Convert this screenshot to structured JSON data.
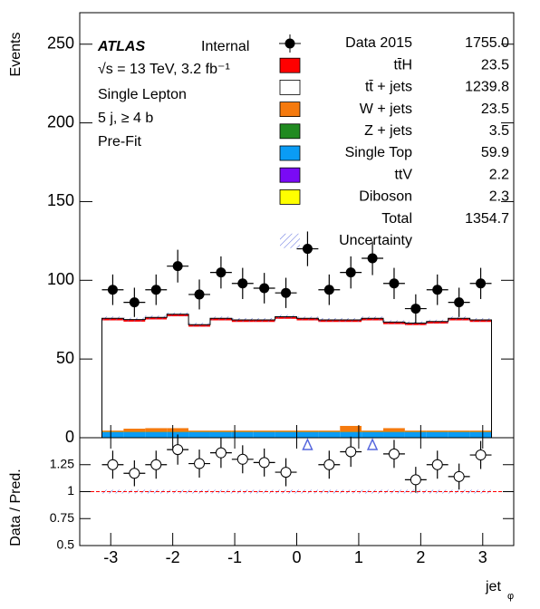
{
  "chart_data": {
    "type": "stacked_histogram",
    "y_label": "Events",
    "ratio_label": "Data / Pred.",
    "x_label": "jet",
    "x_label_sub": "φ",
    "annotations": [
      "ATLAS",
      "Internal",
      "√s = 13 TeV, 3.2 fb⁻¹",
      "Single Lepton",
      "5 j, ≥ 4 b",
      "Pre-Fit"
    ],
    "bins": [
      -3.142,
      -2.793,
      -2.443,
      -2.094,
      -1.745,
      -1.396,
      -1.047,
      -0.698,
      -0.349,
      0,
      0.349,
      0.698,
      1.047,
      1.396,
      1.745,
      2.094,
      2.443,
      2.793,
      3.142
    ],
    "xlim": [
      -3.5,
      3.5
    ],
    "xticks": [
      -3,
      -2,
      -1,
      0,
      1,
      2,
      3
    ],
    "ylim": [
      0,
      270
    ],
    "yticks": [
      0,
      50,
      100,
      150,
      200,
      250
    ],
    "ratio_ylim": [
      0.5,
      1.5
    ],
    "ratio_yticks": [
      {
        "value": 0.5,
        "label": "0.5"
      },
      {
        "value": 0.75,
        "label": "0.75"
      },
      1,
      {
        "value": 1.25,
        "label": "1.25"
      }
    ],
    "data": {
      "name": "Data 2015",
      "yield": "1755.0",
      "color": "#000000",
      "values": [
        94,
        86,
        94,
        109,
        91,
        105,
        98,
        95,
        92,
        120,
        94,
        105,
        114,
        98,
        82,
        94,
        86,
        98
      ],
      "errors": [
        9.7,
        9.3,
        9.7,
        10.4,
        9.5,
        10.2,
        9.9,
        9.7,
        9.6,
        11,
        9.7,
        10.2,
        10.7,
        9.9,
        9.1,
        9.7,
        9.3,
        9.9
      ]
    },
    "ratio": {
      "values": [
        1.25,
        1.17,
        1.25,
        1.39,
        1.26,
        1.36,
        1.3,
        1.27,
        1.18,
        1.6,
        1.25,
        1.37,
        1.54,
        1.35,
        1.11,
        1.25,
        1.14,
        1.34
      ],
      "errors": [
        0.13,
        0.12,
        0.13,
        0.14,
        0.13,
        0.14,
        0.13,
        0.13,
        0.13,
        0.15,
        0.13,
        0.14,
        0.14,
        0.13,
        0.12,
        0.13,
        0.12,
        0.13
      ]
    },
    "series": [
      {
        "name": "tt̄H",
        "yield": "23.5",
        "color": "#ff0000",
        "values": [
          1.3,
          1.3,
          1.3,
          1.3,
          1.3,
          1.3,
          1.3,
          1.3,
          1.3,
          1.3,
          1.3,
          1.3,
          1.3,
          1.3,
          1.3,
          1.3,
          1.3,
          1.3
        ]
      },
      {
        "name": "tt̄ + jets",
        "yield": "1239.8",
        "color": "#ffffff",
        "values": [
          70,
          68,
          69,
          71,
          66,
          70,
          69,
          69,
          71,
          70,
          69,
          66,
          70,
          66,
          67,
          68,
          70,
          69
        ]
      },
      {
        "name": "W + jets",
        "yield": "23.5",
        "color": "#f57a0e",
        "values": [
          0.8,
          2.0,
          2.4,
          2.4,
          0.8,
          0.8,
          0.8,
          0.8,
          0.8,
          0.8,
          0.8,
          3.8,
          0.8,
          2.4,
          0.8,
          0.8,
          0.8,
          0.8
        ]
      },
      {
        "name": "Z + jets",
        "yield": "3.5",
        "color": "#208a20",
        "values": [
          0.2,
          0.2,
          0.2,
          0.2,
          0.2,
          0.2,
          0.2,
          0.2,
          0.2,
          0.2,
          0.2,
          0.2,
          0.2,
          0.2,
          0.2,
          0.2,
          0.2,
          0.2
        ]
      },
      {
        "name": "Single Top",
        "yield": "59.9",
        "color": "#0a9cf5",
        "values": [
          3.3,
          3.3,
          3.3,
          3.3,
          3.3,
          3.3,
          3.3,
          3.3,
          3.3,
          3.3,
          3.3,
          3.3,
          3.3,
          3.3,
          3.3,
          3.3,
          3.3,
          3.3
        ]
      },
      {
        "name": "ttV",
        "yield": "2.2",
        "color": "#7a0af5",
        "values": [
          0.12,
          0.12,
          0.12,
          0.12,
          0.12,
          0.12,
          0.12,
          0.12,
          0.12,
          0.12,
          0.12,
          0.12,
          0.12,
          0.12,
          0.12,
          0.12,
          0.12,
          0.12
        ]
      },
      {
        "name": "Diboson",
        "yield": "2.3",
        "color": "#ffff00",
        "values": [
          0.13,
          0.13,
          0.13,
          0.13,
          0.13,
          0.13,
          0.13,
          0.13,
          0.13,
          0.13,
          0.13,
          0.13,
          0.13,
          0.13,
          0.13,
          0.13,
          0.13,
          0.13
        ]
      }
    ],
    "total": {
      "name": "Total",
      "yield": "1354.7"
    },
    "uncertainty": {
      "name": "Uncertainty"
    }
  }
}
